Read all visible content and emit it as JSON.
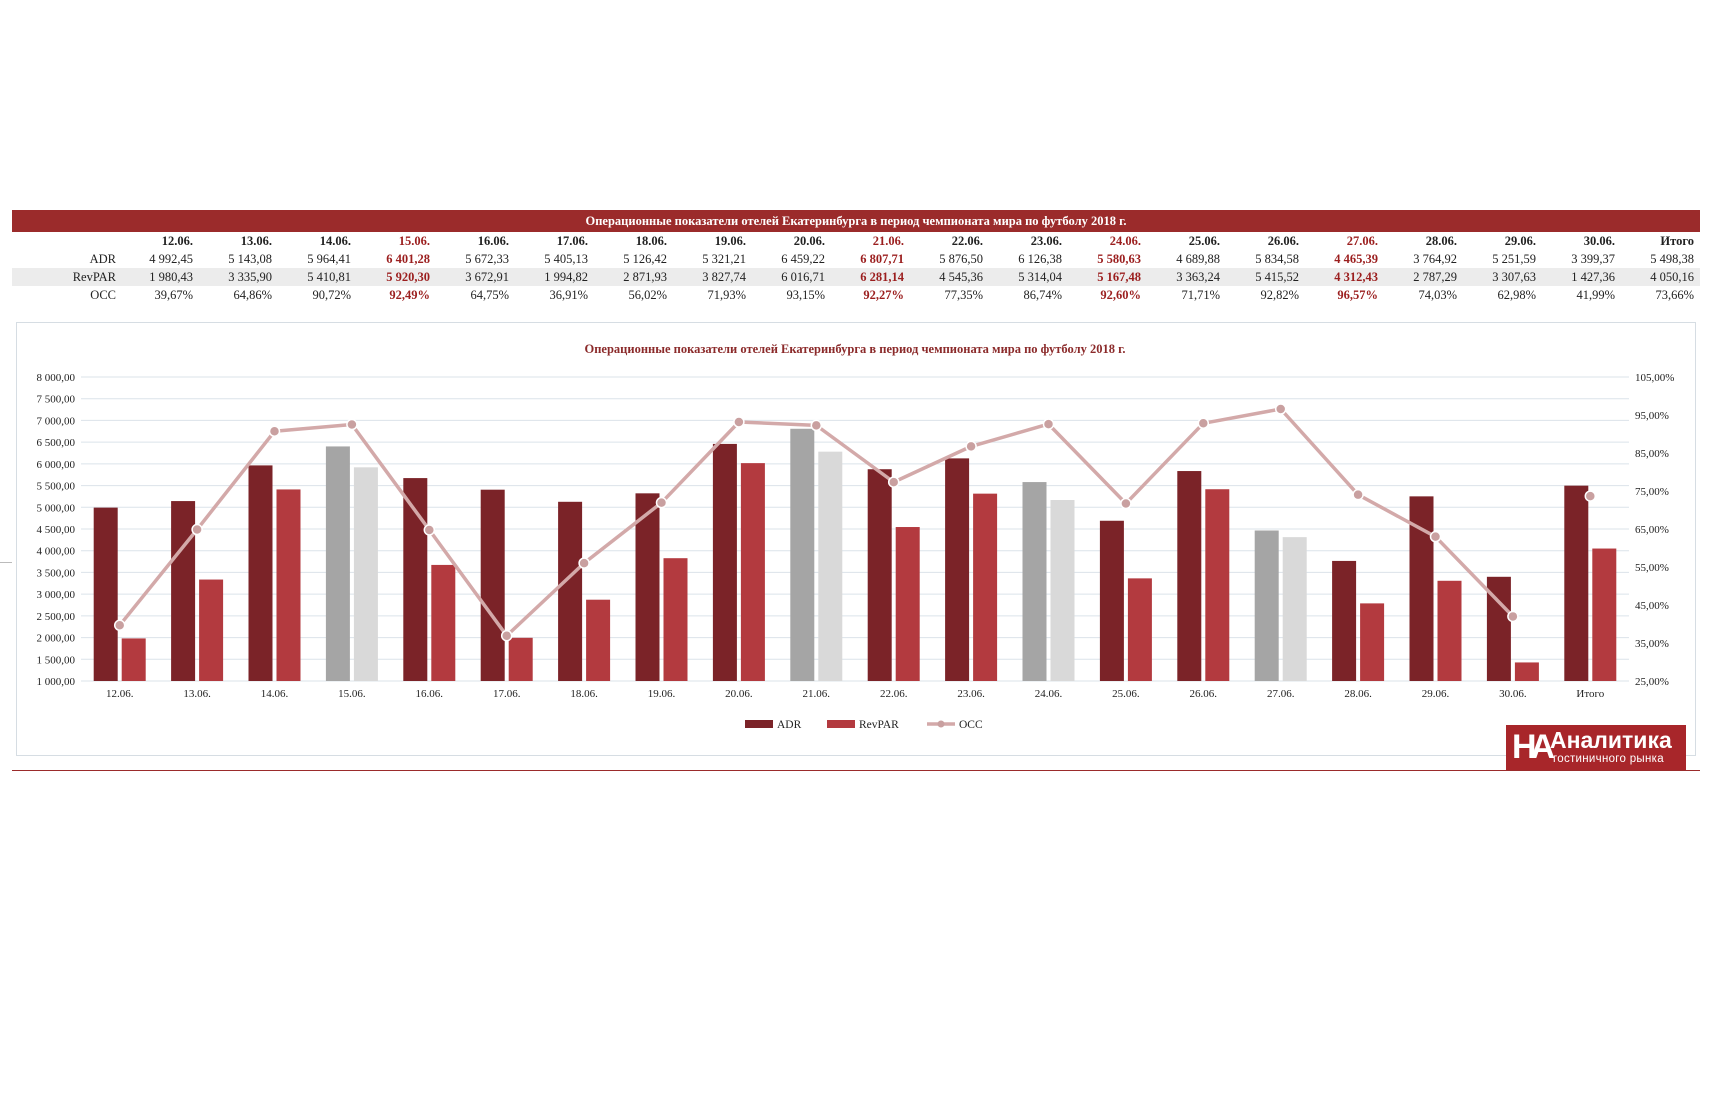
{
  "table": {
    "title": "Операционные показатели отелей Екатеринбурга в период чемпионата мира по футболу 2018 г.",
    "columns": [
      "12.06.",
      "13.06.",
      "14.06.",
      "15.06.",
      "16.06.",
      "17.06.",
      "18.06.",
      "19.06.",
      "20.06.",
      "21.06.",
      "22.06.",
      "23.06.",
      "24.06.",
      "25.06.",
      "26.06.",
      "27.06.",
      "28.06.",
      "29.06.",
      "30.06.",
      "Итого"
    ],
    "highlight_columns": [
      "15.06.",
      "21.06.",
      "24.06.",
      "27.06."
    ],
    "rows": [
      {
        "label": "ADR",
        "values": [
          "4 992,45",
          "5 143,08",
          "5 964,41",
          "6 401,28",
          "5 672,33",
          "5 405,13",
          "5 126,42",
          "5 321,21",
          "6 459,22",
          "6 807,71",
          "5 876,50",
          "6 126,38",
          "5 580,63",
          "4 689,88",
          "5 834,58",
          "4 465,39",
          "3 764,92",
          "5 251,59",
          "3 399,37",
          "5 498,38"
        ]
      },
      {
        "label": "RevPAR",
        "values": [
          "1 980,43",
          "3 335,90",
          "5 410,81",
          "5 920,30",
          "3 672,91",
          "1 994,82",
          "2 871,93",
          "3 827,74",
          "6 016,71",
          "6 281,14",
          "4 545,36",
          "5 314,04",
          "5 167,48",
          "3 363,24",
          "5 415,52",
          "4 312,43",
          "2 787,29",
          "3 307,63",
          "1 427,36",
          "4 050,16"
        ]
      },
      {
        "label": "OCC",
        "values": [
          "39,67%",
          "64,86%",
          "90,72%",
          "92,49%",
          "64,75%",
          "36,91%",
          "56,02%",
          "71,93%",
          "93,15%",
          "92,27%",
          "77,35%",
          "86,74%",
          "92,60%",
          "71,71%",
          "92,82%",
          "96,57%",
          "74,03%",
          "62,98%",
          "41,99%",
          "73,66%"
        ]
      }
    ]
  },
  "chart_data": {
    "type": "bar",
    "title": "Операционные показатели отелей Екатеринбурга в период чемпионата мира по футболу 2018 г.",
    "categories": [
      "12.06.",
      "13.06.",
      "14.06.",
      "15.06.",
      "16.06.",
      "17.06.",
      "18.06.",
      "19.06.",
      "20.06.",
      "21.06.",
      "22.06.",
      "23.06.",
      "24.06.",
      "25.06.",
      "26.06.",
      "27.06.",
      "28.06.",
      "29.06.",
      "30.06.",
      "Итого"
    ],
    "highlight_categories": [
      "15.06.",
      "21.06.",
      "24.06.",
      "27.06."
    ],
    "series": [
      {
        "name": "ADR",
        "type": "bar",
        "axis": "left",
        "color": "#7b2328",
        "highlight_color": "#a5a5a5",
        "values": [
          4992.45,
          5143.08,
          5964.41,
          6401.28,
          5672.33,
          5405.13,
          5126.42,
          5321.21,
          6459.22,
          6807.71,
          5876.5,
          6126.38,
          5580.63,
          4689.88,
          5834.58,
          4465.39,
          3764.92,
          5251.59,
          3399.37,
          5498.38
        ]
      },
      {
        "name": "RevPAR",
        "type": "bar",
        "axis": "left",
        "color": "#b33a3f",
        "highlight_color": "#d9d9d9",
        "values": [
          1980.43,
          3335.9,
          5410.81,
          5920.3,
          3672.91,
          1994.82,
          2871.93,
          3827.74,
          6016.71,
          6281.14,
          4545.36,
          5314.04,
          5167.48,
          3363.24,
          5415.52,
          4312.43,
          2787.29,
          3307.63,
          1427.36,
          4050.16
        ]
      },
      {
        "name": "OCC",
        "type": "line",
        "axis": "right",
        "color": "#d3a9a9",
        "values": [
          39.67,
          64.86,
          90.72,
          92.49,
          64.75,
          36.91,
          56.02,
          71.93,
          93.15,
          92.27,
          77.35,
          86.74,
          92.6,
          71.71,
          92.82,
          96.57,
          74.03,
          62.98,
          41.99,
          73.66
        ]
      }
    ],
    "ylim": [
      1000,
      8000
    ],
    "yticks": [
      "1 000,00",
      "1 500,00",
      "2 000,00",
      "2 500,00",
      "3 000,00",
      "3 500,00",
      "4 000,00",
      "4 500,00",
      "5 000,00",
      "5 500,00",
      "6 000,00",
      "6 500,00",
      "7 000,00",
      "7 500,00",
      "8 000,00"
    ],
    "y2lim": [
      25,
      105
    ],
    "y2ticks": [
      "25,00%",
      "35,00%",
      "45,00%",
      "55,00%",
      "65,00%",
      "75,00%",
      "85,00%",
      "95,00%",
      "105,00%"
    ],
    "grid": true,
    "legend": "bottom-center"
  },
  "logo": {
    "mark": "НА",
    "line1": "Аналитика",
    "line2": "гостиничного рынка"
  }
}
